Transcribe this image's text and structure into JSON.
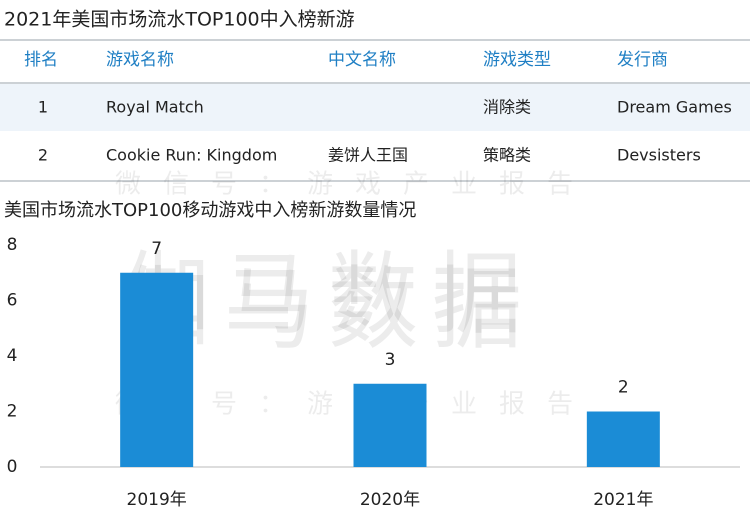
{
  "header": {
    "title": "2021年美国市场流水TOP100中入榜新游"
  },
  "table": {
    "columns": [
      "排名",
      "游戏名称",
      "中文名称",
      "游戏类型",
      "发行商"
    ],
    "rows": [
      [
        "1",
        "Royal Match",
        null,
        "消除类",
        "Dream Games"
      ],
      [
        "2",
        "Cookie Run: Kingdom",
        "姜饼人王国",
        "策略类",
        "Devsisters"
      ]
    ]
  },
  "watermarks": [
    "伽马数据",
    "微信号：游戏产业报告",
    "伽马数据",
    "微信号：游戏产业报告"
  ],
  "chart_data": {
    "type": "bar",
    "title": "美国市场流水TOP100移动游戏中入榜新游数量情况",
    "categories": [
      "2019年",
      "2020年",
      "2021年"
    ],
    "values": [
      7,
      3,
      2
    ],
    "color": "#1b8cd6",
    "ylim": [
      0,
      8
    ],
    "yticks": [
      0,
      2,
      4,
      6,
      8
    ],
    "grid": false
  }
}
